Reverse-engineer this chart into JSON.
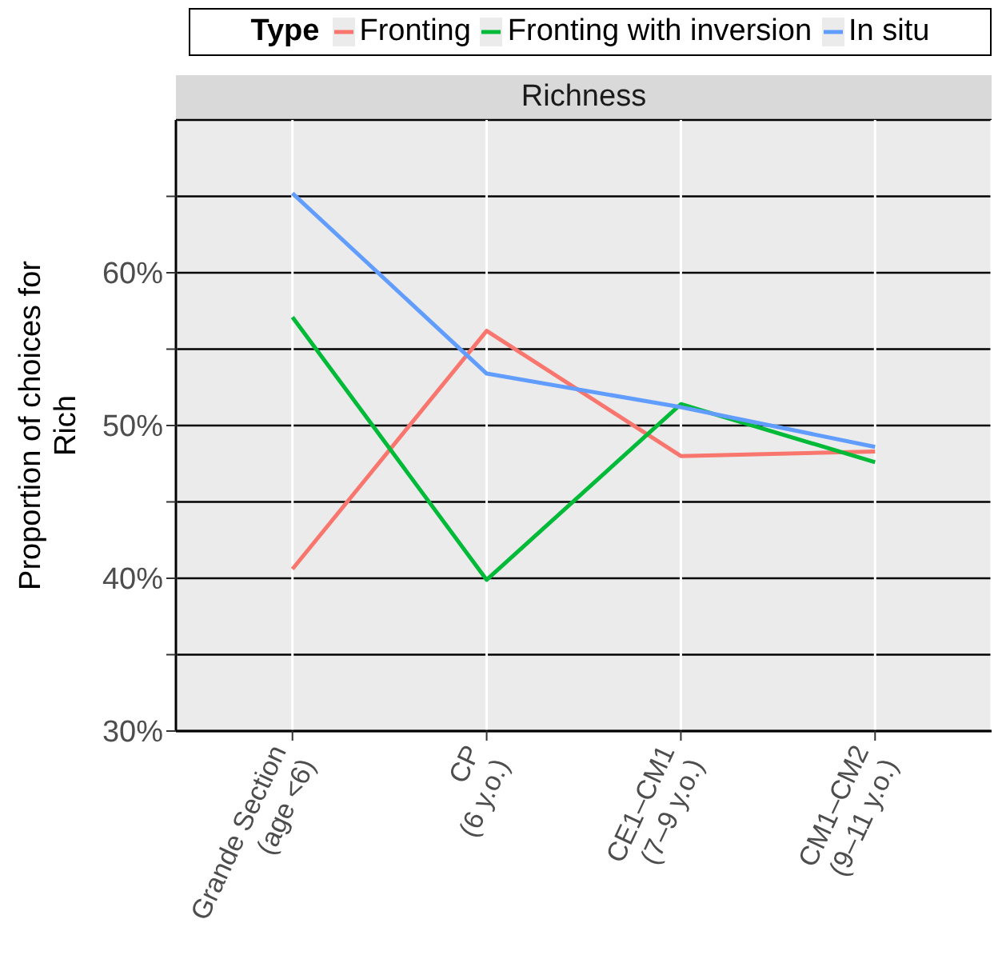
{
  "chart_data": {
    "type": "line",
    "title": "Richness",
    "ylabel": "Proportion of choices for Rich",
    "legend_title": "Type",
    "legend": "top",
    "categories": [
      "Grande Section\n(age <6)",
      "CP\n(6 y.o.)",
      "CE1–CM1\n(7–9 y.o.)",
      "CM1–CM2\n(9–11 y.o.)"
    ],
    "series": [
      {
        "name": "Fronting",
        "color": "#f8766d",
        "values": [
          40.6,
          56.2,
          48.0,
          48.3
        ]
      },
      {
        "name": "Fronting with inversion",
        "color": "#00ba38",
        "values": [
          57.1,
          39.9,
          51.4,
          47.6
        ]
      },
      {
        "name": "In situ",
        "color": "#619cff",
        "values": [
          65.2,
          53.4,
          51.2,
          48.6
        ]
      }
    ],
    "ylim": [
      30,
      70
    ],
    "yticks": [
      {
        "value": 30,
        "label": "30%"
      },
      {
        "value": 35,
        "label": null
      },
      {
        "value": 40,
        "label": "40%"
      },
      {
        "value": 45,
        "label": null
      },
      {
        "value": 50,
        "label": "50%"
      },
      {
        "value": 55,
        "label": null
      },
      {
        "value": 60,
        "label": "60%"
      },
      {
        "value": 65,
        "label": null
      }
    ],
    "grid": true,
    "marker": "none",
    "line_style": "solid"
  }
}
